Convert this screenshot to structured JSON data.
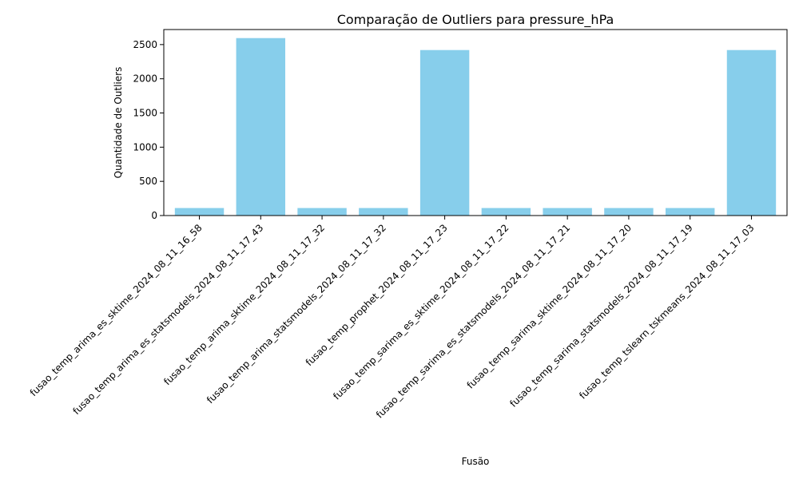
{
  "chart_data": {
    "type": "bar",
    "title": "Comparação de Outliers para pressure_hPa",
    "xlabel": "Fusão",
    "ylabel": "Quantidade de Outliers",
    "categories": [
      "fusao_temp_arima_es_sktime_2024_08_11_16_58",
      "fusao_temp_arima_es_statsmodels_2024_08_11_17_43",
      "fusao_temp_arima_sktime_2024_08_11_17_32",
      "fusao_temp_arima_statsmodels_2024_08_11_17_32",
      "fusao_temp_prophet_2024_08_11_17_23",
      "fusao_temp_sarima_es_sktime_2024_08_11_17_22",
      "fusao_temp_sarima_es_statsmodels_2024_08_11_17_21",
      "fusao_temp_sarima_sktime_2024_08_11_17_20",
      "fusao_temp_sarima_statsmodels_2024_08_11_17_19",
      "fusao_temp_tslearn_tskmeans_2024_08_11_17_03"
    ],
    "values": [
      110,
      2595,
      110,
      110,
      2420,
      110,
      110,
      110,
      110,
      2420
    ],
    "ylim": [
      0,
      2720
    ],
    "yticks": [
      0,
      500,
      1000,
      1500,
      2000,
      2500
    ],
    "bar_color": "#87CEEB",
    "grid": false,
    "legend": "none"
  }
}
